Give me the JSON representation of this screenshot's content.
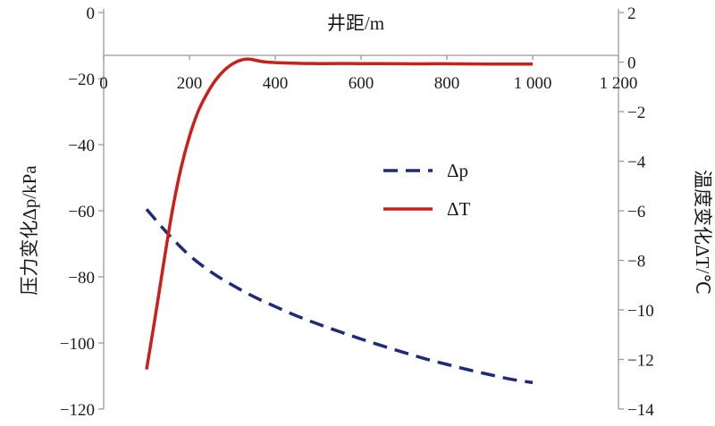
{
  "chart_data": {
    "type": "line",
    "xlabel": "井距/m",
    "ylabel_left": "压力变化Δp/kPa",
    "ylabel_right": "温度变化ΔT/℃",
    "xlim": [
      0,
      1200
    ],
    "ylim_left": [
      -120,
      0
    ],
    "ylim_right": [
      -14,
      2
    ],
    "x_ticks": [
      0,
      200,
      400,
      600,
      800,
      1000,
      1200
    ],
    "x_tick_labels": [
      "0",
      "200",
      "400",
      "600",
      "800",
      "1 000",
      "1 200"
    ],
    "y_left_ticks": [
      0,
      -20,
      -40,
      -60,
      -80,
      -100,
      -120
    ],
    "y_left_tick_labels": [
      "0",
      "−20",
      "−40",
      "−60",
      "−80",
      "−100",
      "−120"
    ],
    "y_right_ticks": [
      2,
      0,
      -2,
      -4,
      -6,
      -8,
      -10,
      -12,
      -14
    ],
    "y_right_tick_labels": [
      "2",
      "0",
      "−2",
      "−4",
      "−6",
      "−8",
      "−10",
      "−12",
      "−14"
    ],
    "grid": false,
    "legend_position": "center-right",
    "series": [
      {
        "name": "Δp",
        "axis": "left",
        "style": "dashed",
        "color": "#1f2a7a",
        "x": [
          100,
          150,
          200,
          250,
          300,
          350,
          400,
          450,
          500,
          550,
          600,
          650,
          700,
          750,
          800,
          850,
          900,
          950,
          1000
        ],
        "y": [
          -59.5,
          -67,
          -73.5,
          -78.5,
          -82.5,
          -86,
          -89,
          -91.8,
          -94.3,
          -96.6,
          -98.8,
          -100.9,
          -102.9,
          -104.8,
          -106.5,
          -108.1,
          -109.6,
          -111,
          -112
        ]
      },
      {
        "name": "ΔT",
        "axis": "right",
        "style": "solid",
        "color": "#cc1f1a",
        "x": [
          100,
          120,
          140,
          160,
          180,
          200,
          220,
          240,
          260,
          280,
          300,
          320,
          340,
          360,
          380,
          400,
          450,
          500,
          600,
          700,
          800,
          900,
          1000
        ],
        "y": [
          -12.4,
          -10.3,
          -8.1,
          -6.0,
          -4.3,
          -3.0,
          -2.0,
          -1.3,
          -0.75,
          -0.35,
          -0.08,
          0.08,
          0.12,
          0.05,
          0.0,
          -0.02,
          -0.05,
          -0.06,
          -0.06,
          -0.07,
          -0.07,
          -0.08,
          -0.08
        ]
      }
    ]
  }
}
